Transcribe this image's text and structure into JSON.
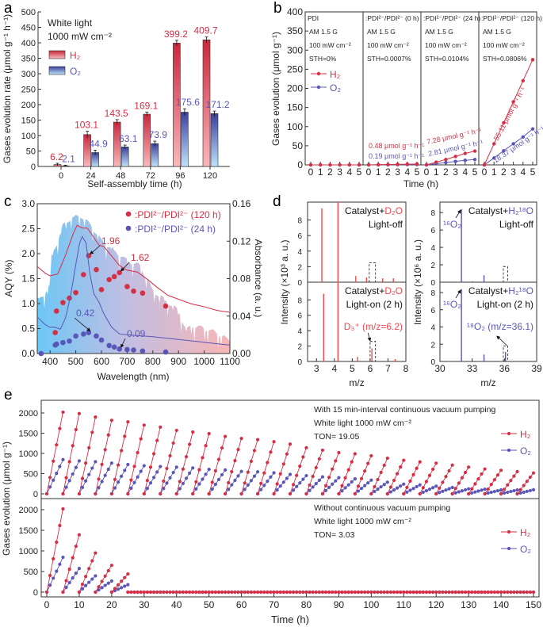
{
  "panel_labels": [
    "a",
    "b",
    "c",
    "d",
    "e"
  ],
  "colors": {
    "h2": "#d52f45",
    "o2": "#5a56b8",
    "axis": "#333333"
  },
  "chart_data": [
    {
      "type": "bar",
      "xlabel": "Self-assembly time (h)",
      "ylabel": "Gases evolution rate (μmol g⁻¹ h⁻¹)",
      "ylim": [
        0,
        500
      ],
      "yticks": [
        "0",
        "50",
        "100",
        "150",
        "200",
        "250",
        "300",
        "350",
        "400",
        "450",
        "500"
      ],
      "categories": [
        "0",
        "24",
        "48",
        "72",
        "96",
        "120"
      ],
      "annotations": [
        "White light",
        "1000 mW cm⁻²"
      ],
      "legend_position": "top-left",
      "series": [
        {
          "name": "H₂",
          "values": [
            6.2,
            103.1,
            143.5,
            169.1,
            399.2,
            409.7
          ],
          "labels": [
            "6.2",
            "103.1",
            "143.5",
            "169.1",
            "399.2",
            "409.7"
          ],
          "errors": [
            4,
            11,
            8,
            7,
            9,
            9
          ]
        },
        {
          "name": "O₂",
          "values": [
            2.1,
            44.9,
            63.1,
            73.9,
            175.6,
            171.2
          ],
          "labels": [
            "2.1",
            "44.9",
            "63.1",
            "73.9",
            "175.6",
            "171.2"
          ],
          "errors": [
            2,
            8,
            6,
            8,
            11,
            8
          ]
        }
      ]
    },
    {
      "type": "line",
      "xlabel": "Time (h)",
      "ylabel": "Gases evolution (μmol g⁻¹)",
      "ylim": [
        0,
        400
      ],
      "yticks": [
        "0",
        "50",
        "100",
        "150",
        "200",
        "250",
        "300",
        "350",
        "400"
      ],
      "xticks": [
        "0",
        "1",
        "2",
        "3",
        "4",
        "5"
      ],
      "legend": [
        "H₂",
        "O₂"
      ],
      "panels": [
        {
          "title": "PDI",
          "conditions": [
            "AM 1.5 G",
            "100 mW cm⁻²",
            "STH=0%"
          ],
          "H2": [
            0,
            0,
            0,
            0,
            0,
            0
          ],
          "O2": [
            0,
            0,
            0,
            0,
            0,
            0
          ]
        },
        {
          "title": ":PDI²⁻/PDI²⁻ (0 h)",
          "conditions": [
            "AM 1.5 G",
            "100 mW cm⁻²",
            "STH=0.0007%"
          ],
          "H2": [
            0,
            0.5,
            1,
            1.4,
            1.9,
            2.4
          ],
          "O2": [
            0,
            0.2,
            0.4,
            0.6,
            0.8,
            1.0
          ],
          "rate_h2": "0.48 μmol g⁻¹ h⁻¹",
          "rate_o2": "0.19 μmol g⁻¹ h⁻¹"
        },
        {
          "title": ":PDI²⁻/PDI²⁻ (24 h)",
          "conditions": [
            "AM 1.5 G",
            "100 mW cm⁻²",
            "STH=0.0104%"
          ],
          "H2": [
            0,
            7,
            14,
            22,
            30,
            36
          ],
          "O2": [
            0,
            3,
            6,
            9,
            12,
            14
          ],
          "rate_h2": "7.28 μmol g⁻¹ h⁻¹",
          "rate_o2": "2.81 μmol g⁻¹ h⁻¹"
        },
        {
          "title": ":PDI²⁻/PDI²⁻ (120 h)",
          "conditions": [
            "AM 1.5 G",
            "100 mW cm⁻²",
            "STH=0.0806%"
          ],
          "H2": [
            0,
            55,
            110,
            165,
            220,
            275
          ],
          "O2": [
            0,
            18,
            37,
            55,
            73,
            94
          ],
          "rate_h2": "55.11 μmol g⁻¹ h⁻¹",
          "rate_o2": "18.37 μmol g⁻¹ h⁻¹"
        }
      ]
    },
    {
      "type": "scatter",
      "xlabel": "Wavelength (nm)",
      "ylabel": "AQY (%)",
      "ylabel_right": "Absorbance (a. u.)",
      "xlim": [
        350,
        1100
      ],
      "ylim": [
        0,
        3.0
      ],
      "ylim_right": [
        0,
        0.16
      ],
      "xticks": [
        "400",
        "500",
        "600",
        "700",
        "800",
        "900",
        "1000",
        "1100"
      ],
      "yticks": [
        "0.0",
        "0.5",
        "1.0",
        "1.5",
        "2.0",
        "2.5",
        "3.0"
      ],
      "yticks_right": [
        "0.00",
        "0.04",
        "0.08",
        "0.12",
        "0.16"
      ],
      "legend_position": "top-right",
      "series": [
        {
          "name": ":PDI²⁻/PDI²⁻ (120 h)",
          "x": [
            420,
            425,
            450,
            475,
            500,
            530,
            550,
            580,
            600,
            630,
            650,
            670,
            700,
            725,
            760,
            850
          ],
          "y": [
            0.42,
            0.85,
            1.02,
            1.11,
            1.22,
            1.58,
            1.96,
            1.68,
            1.28,
            1.48,
            1.54,
            1.62,
            1.34,
            1.25,
            1.21,
            0.95
          ],
          "absorbance": [
            [
              350,
              0.093
            ],
            [
              380,
              0.086
            ],
            [
              400,
              0.083
            ],
            [
              430,
              0.085
            ],
            [
              460,
              0.105
            ],
            [
              490,
              0.128
            ],
            [
              505,
              0.137
            ],
            [
              525,
              0.134
            ],
            [
              545,
              0.134
            ],
            [
              570,
              0.124
            ],
            [
              590,
              0.116
            ],
            [
              610,
              0.114
            ],
            [
              640,
              0.104
            ],
            [
              670,
              0.094
            ],
            [
              700,
              0.089
            ],
            [
              740,
              0.087
            ],
            [
              780,
              0.079
            ],
            [
              820,
              0.07
            ],
            [
              860,
              0.062
            ],
            [
              900,
              0.058
            ],
            [
              950,
              0.053
            ],
            [
              1000,
              0.05
            ],
            [
              1050,
              0.046
            ],
            [
              1100,
              0.044
            ]
          ]
        },
        {
          "name": ":PDI²⁻/PDI²⁻ (24 h)",
          "x": [
            365,
            420,
            425,
            450,
            475,
            500,
            530,
            550,
            580,
            600,
            630,
            650,
            670,
            700,
            725,
            760,
            850
          ],
          "y": [
            0.0,
            0.17,
            0.19,
            0.22,
            0.25,
            0.35,
            0.39,
            0.42,
            0.35,
            0.27,
            0.16,
            0.13,
            0.09,
            0.08,
            0.07,
            0.05,
            0.03
          ],
          "absorbance": [
            [
              350,
              0.039
            ],
            [
              380,
              0.031
            ],
            [
              400,
              0.028
            ],
            [
              420,
              0.028
            ],
            [
              440,
              0.026
            ],
            [
              460,
              0.038
            ],
            [
              480,
              0.062
            ],
            [
              500,
              0.095
            ],
            [
              515,
              0.118
            ],
            [
              525,
              0.125
            ],
            [
              540,
              0.118
            ],
            [
              555,
              0.085
            ],
            [
              570,
              0.064
            ],
            [
              590,
              0.055
            ],
            [
              610,
              0.042
            ],
            [
              640,
              0.028
            ],
            [
              670,
              0.021
            ],
            [
              700,
              0.02
            ],
            [
              800,
              0.018
            ],
            [
              900,
              0.015
            ],
            [
              1000,
              0.012
            ],
            [
              1100,
              0.009
            ]
          ]
        }
      ],
      "annotations": [
        {
          "text": "1.96",
          "series": 0,
          "x": 550,
          "y": 1.96
        },
        {
          "text": "1.62",
          "series": 0,
          "x": 670,
          "y": 1.62
        },
        {
          "text": "0.42",
          "series": 1,
          "x": 550,
          "y": 0.42
        },
        {
          "text": "0.09",
          "series": 1,
          "x": 670,
          "y": 0.09
        }
      ]
    },
    {
      "type": "bar",
      "xlabel": "m/z",
      "panels": [
        {
          "ylabel": "Intensity (×10³ a. u.)",
          "xlim": [
            2.5,
            8
          ],
          "ylim": [
            0,
            10.3
          ],
          "xticks": [
            "3",
            "4",
            "5",
            "6",
            "7",
            "8"
          ],
          "yticks": [
            "0",
            "2",
            "4",
            "6",
            "8"
          ],
          "top": {
            "label_prefix": "Catalyst+",
            "label_reagent": "D₂O",
            "condition": "Light-off",
            "peaks": [
              [
                3.3,
                9.5
              ],
              [
                4.2,
                10.3
              ],
              [
                5.2,
                0.8
              ],
              [
                5.8,
                0.6
              ],
              [
                6.7,
                0.5
              ],
              [
                7.3,
                0.5
              ]
            ],
            "highlight_box": [
              5.95,
              6.3,
              2.5
            ]
          },
          "bottom": {
            "label_prefix": "Catalyst+",
            "label_reagent": "D₂O",
            "condition": "Light-on (2 h)",
            "peaks": [
              [
                3.4,
                8.8
              ],
              [
                4.2,
                10.3
              ],
              [
                5.3,
                0.6
              ],
              [
                6.1,
                1.7
              ],
              [
                7.4,
                0.3
              ]
            ],
            "highlight_box": [
              6.0,
              6.3,
              2.6
            ],
            "annotation": "D₃⁺ (m/z=6.2)"
          }
        },
        {
          "ylabel": "Intensity (×10⁶ a. u.)",
          "xlim": [
            30,
            39
          ],
          "ylim": [
            0,
            9.2
          ],
          "xticks": [
            "30",
            "33",
            "36",
            "39"
          ],
          "yticks": [
            "0",
            "2",
            "4",
            "6",
            "8"
          ],
          "top": {
            "label_prefix": "Catalyst+",
            "label_reagent": "H₂¹⁸O",
            "condition": "Light-off",
            "peaks": [
              [
                32,
                8.4
              ],
              [
                33,
                0.1
              ],
              [
                34.1,
                0.8
              ]
            ],
            "highlight_box": [
              35.9,
              36.3,
              1.8
            ],
            "annotation": "¹⁶O₂"
          },
          "bottom": {
            "label_prefix": "Catalyst+",
            "label_reagent": "H₂¹⁸O",
            "condition": "Light-on (2 h)",
            "peaks": [
              [
                32,
                8.4
              ],
              [
                33,
                0.1
              ],
              [
                34.1,
                0.8
              ],
              [
                36.1,
                1.1
              ]
            ],
            "highlight_box": [
              35.9,
              36.3,
              1.8
            ],
            "annotation": "¹⁶O₂",
            "annotation2": "¹⁸O₂ (m/z=36.1)"
          }
        }
      ]
    },
    {
      "type": "line",
      "xlabel": "Time (h)",
      "ylabel": "Gases evolution (μmol g⁻¹)",
      "xlim": [
        0,
        150
      ],
      "xticks": [
        "0",
        "10",
        "20",
        "30",
        "40",
        "50",
        "60",
        "70",
        "80",
        "90",
        "100",
        "110",
        "120",
        "130",
        "140",
        "150"
      ],
      "yticks": [
        "0",
        "500",
        "1000",
        "1500",
        "2000"
      ],
      "cycle_length_h": 5,
      "legend": [
        "H₂",
        "O₂"
      ],
      "panels": [
        {
          "notes": [
            "With 15 min-interval continuous vacuum pumping",
            "White light 1000 mW cm⁻²",
            "TON= 19.05"
          ],
          "H2_cycle_peaks": [
            2020,
            1985,
            1900,
            1820,
            1780,
            1700,
            1650,
            1570,
            1530,
            1490,
            1420,
            1370,
            1340,
            1290,
            1230,
            1140,
            1080,
            1020,
            990,
            941,
            882,
            830,
            790,
            759,
            712,
            661,
            614,
            582,
            549,
            516
          ],
          "O2_cycle_peaks": [
            845,
            815,
            795,
            760,
            725,
            695,
            675,
            660,
            640,
            605,
            590,
            555,
            545,
            520,
            480,
            450,
            420,
            400,
            370,
            339,
            288,
            241,
            222,
            190,
            157,
            124,
            114,
            96,
            96,
            100
          ]
        },
        {
          "notes": [
            "Without continuous vacuum pumping",
            "White light 1000 mW cm⁻²",
            "TON= 3.03"
          ],
          "H2_cycle_peaks": [
            2020,
            1390,
            950,
            650,
            440
          ],
          "O2_cycle_peaks": [
            845,
            575,
            395,
            270,
            180
          ],
          "after_25h_value": 0
        }
      ]
    }
  ]
}
